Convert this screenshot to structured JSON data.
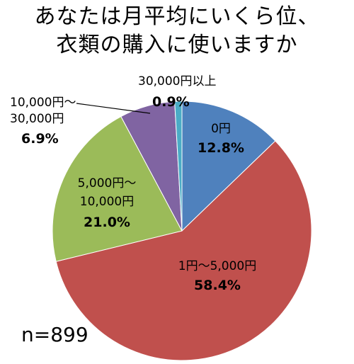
{
  "chart_data": {
    "type": "pie",
    "title_line1": "あなたは月平均にいくら位、",
    "title_line2": "衣類の購入に使いますか",
    "sample_size": "n=899",
    "slices": [
      {
        "label": "0円",
        "percent_text": "12.8%",
        "value": 12.8,
        "color": "#4f81bd"
      },
      {
        "label": "1円〜5,000円",
        "percent_text": "58.4%",
        "value": 58.4,
        "color": "#c0504d"
      },
      {
        "label_line1": "5,000円〜",
        "label_line2": "10,000円",
        "percent_text": "21.0%",
        "value": 21.0,
        "color": "#9bbb59"
      },
      {
        "label_line1": "10,000円〜",
        "label_line2": "30,000円",
        "percent_text": "6.9%",
        "value": 6.9,
        "color": "#8064a2"
      },
      {
        "label": "30,000円以上",
        "percent_text": "0.9%",
        "value": 0.9,
        "color": "#4bacc6"
      }
    ]
  }
}
